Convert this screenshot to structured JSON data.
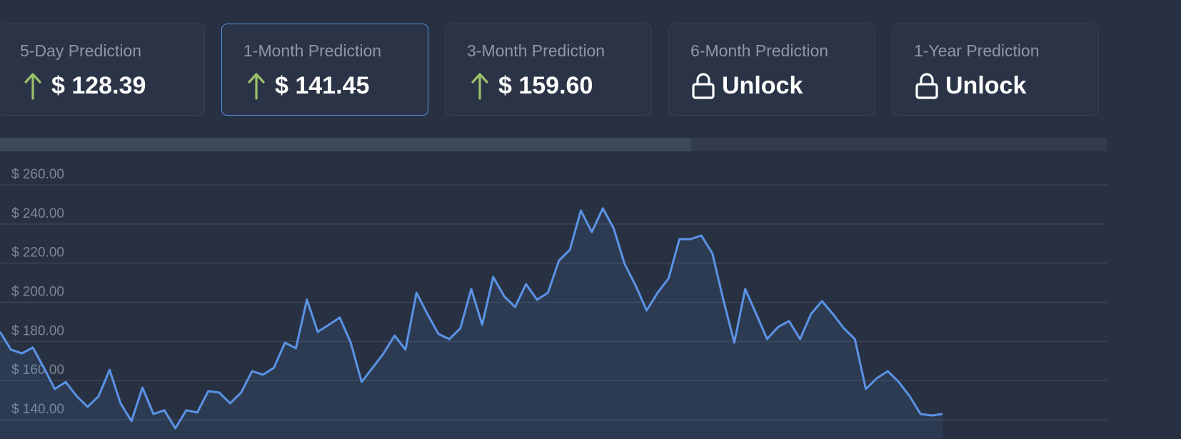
{
  "cards": [
    {
      "label": "5-Day Prediction",
      "value": "$ 128.39",
      "icon": "arrow-up",
      "selected": false
    },
    {
      "label": "1-Month Prediction",
      "value": "$ 141.45",
      "icon": "arrow-up",
      "selected": true
    },
    {
      "label": "3-Month Prediction",
      "value": "$ 159.60",
      "icon": "arrow-up",
      "selected": false
    },
    {
      "label": "6-Month Prediction",
      "value": "Unlock",
      "icon": "lock",
      "selected": false
    },
    {
      "label": "1-Year Prediction",
      "value": "Unlock",
      "icon": "lock",
      "selected": false
    }
  ],
  "chart_data": {
    "type": "line",
    "color": "#5b93e6",
    "values": [
      184.9,
      175.8,
      173.9,
      176.9,
      166.6,
      155.7,
      159.3,
      152,
      146.6,
      152,
      165.5,
      148.4,
      139.3,
      156.4,
      142.9,
      144.8,
      135.6,
      144.8,
      143.7,
      154.6,
      153.9,
      148.4,
      153.9,
      164.8,
      163,
      166.6,
      179.4,
      176.5,
      201.3,
      184.9,
      188.5,
      192.2,
      179.4,
      159.3,
      166.6,
      173.9,
      183,
      175.8,
      204.9,
      194,
      183.8,
      181.2,
      186.7,
      206.8,
      188.5,
      213,
      203.1,
      197.6,
      209.3,
      201.3,
      204.9,
      221.3,
      226.8,
      246.9,
      235.9,
      248,
      237.8,
      219.5,
      208.6,
      195.8,
      204.9,
      212.2,
      232.3,
      232.3,
      234.1,
      225,
      201.3,
      179.4,
      206.8,
      194,
      181.2,
      187.4,
      190.4,
      181.2,
      194,
      200.6,
      194,
      186.7,
      181.2,
      155.7,
      161.2,
      164.8,
      159.3,
      152,
      142.9,
      142.2,
      142.9
    ],
    "ylim": [
      130,
      270
    ],
    "yticks": [
      {
        "value": 140,
        "label": "$ 140.00"
      },
      {
        "value": 160,
        "label": "$ 160.00"
      },
      {
        "value": 180,
        "label": "$ 180.00"
      },
      {
        "value": 200,
        "label": "$ 200.00"
      },
      {
        "value": 220,
        "label": "$ 220.00"
      },
      {
        "value": 240,
        "label": "$ 240.00"
      },
      {
        "value": 260,
        "label": "$ 260.00"
      }
    ],
    "grid": true
  }
}
